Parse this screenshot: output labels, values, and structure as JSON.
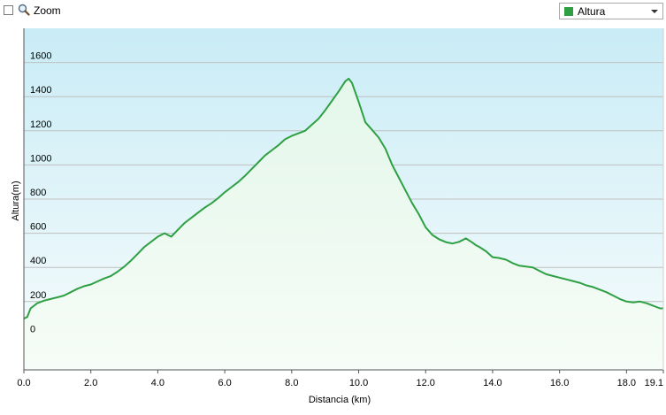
{
  "toolbar": {
    "zoom_label": "Zoom",
    "zoom_checked": false,
    "series_select": {
      "selected": "Altura",
      "color": "#2ea043"
    }
  },
  "colors": {
    "line": "#2ea043",
    "fill_top": "#e4f7ea",
    "fill_bottom": "#f6fcf7",
    "bg_top": "#c9ecf6",
    "bg_bottom": "#f7fcfc",
    "grid": "#bfbfbf"
  },
  "chart_data": {
    "type": "area",
    "xlabel": "Distancia  (km)",
    "ylabel": "Altura(m)",
    "xlim": [
      0.0,
      19.1
    ],
    "ylim": [
      -200,
      1800
    ],
    "x_ticks": [
      "0.0",
      "2.0",
      "4.0",
      "6.0",
      "8.0",
      "10.0",
      "12.0",
      "14.0",
      "16.0",
      "18.0",
      "19.1"
    ],
    "x_tick_values": [
      0,
      2,
      4,
      6,
      8,
      10,
      12,
      14,
      16,
      18,
      19.1
    ],
    "y_ticks": [
      "0",
      "200",
      "400",
      "600",
      "800",
      "1000",
      "1200",
      "1400",
      "1600"
    ],
    "y_tick_values": [
      0,
      200,
      400,
      600,
      800,
      1000,
      1200,
      1400,
      1600
    ],
    "grid": true,
    "series": [
      {
        "name": "Altura",
        "x": [
          0.0,
          0.1,
          0.2,
          0.4,
          0.6,
          0.8,
          1.0,
          1.2,
          1.4,
          1.6,
          1.8,
          2.0,
          2.2,
          2.4,
          2.6,
          2.8,
          3.0,
          3.2,
          3.4,
          3.6,
          3.8,
          4.0,
          4.2,
          4.4,
          4.6,
          4.8,
          5.0,
          5.2,
          5.4,
          5.6,
          5.8,
          6.0,
          6.2,
          6.4,
          6.6,
          6.8,
          7.0,
          7.2,
          7.4,
          7.6,
          7.8,
          8.0,
          8.2,
          8.4,
          8.6,
          8.8,
          9.0,
          9.2,
          9.4,
          9.6,
          9.7,
          9.8,
          10.0,
          10.2,
          10.4,
          10.6,
          10.8,
          11.0,
          11.2,
          11.4,
          11.6,
          11.8,
          12.0,
          12.2,
          12.4,
          12.6,
          12.8,
          13.0,
          13.2,
          13.4,
          13.5,
          13.6,
          13.8,
          14.0,
          14.2,
          14.4,
          14.6,
          14.8,
          15.0,
          15.2,
          15.4,
          15.6,
          15.8,
          16.0,
          16.2,
          16.4,
          16.6,
          16.8,
          17.0,
          17.2,
          17.4,
          17.6,
          17.8,
          18.0,
          18.2,
          18.4,
          18.6,
          18.8,
          19.0,
          19.1
        ],
        "y": [
          100,
          110,
          160,
          190,
          205,
          215,
          225,
          235,
          255,
          275,
          290,
          300,
          318,
          335,
          350,
          375,
          405,
          440,
          480,
          520,
          550,
          580,
          600,
          580,
          620,
          660,
          690,
          720,
          750,
          775,
          805,
          840,
          870,
          900,
          935,
          975,
          1015,
          1055,
          1085,
          1115,
          1150,
          1170,
          1185,
          1200,
          1235,
          1270,
          1320,
          1375,
          1430,
          1490,
          1505,
          1480,
          1370,
          1250,
          1205,
          1160,
          1095,
          1000,
          925,
          850,
          775,
          710,
          635,
          590,
          565,
          548,
          540,
          550,
          570,
          545,
          530,
          520,
          495,
          460,
          455,
          445,
          425,
          410,
          405,
          400,
          380,
          360,
          350,
          340,
          330,
          320,
          310,
          295,
          285,
          270,
          255,
          235,
          215,
          200,
          195,
          200,
          190,
          175,
          160,
          160
        ]
      }
    ]
  }
}
